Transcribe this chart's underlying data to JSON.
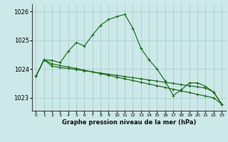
{
  "xlabel": "Graphe pression niveau de la mer (hPa)",
  "bg_color": "#cce8e8",
  "line_color": "#1a6b1a",
  "grid_color": "#aacece",
  "x_ticks": [
    0,
    1,
    2,
    3,
    4,
    5,
    6,
    7,
    8,
    9,
    10,
    11,
    12,
    13,
    14,
    15,
    16,
    17,
    18,
    19,
    20,
    21,
    22,
    23
  ],
  "ylim": [
    1022.55,
    1026.25
  ],
  "yticks": [
    1023,
    1024,
    1025,
    1026
  ],
  "series1_x": [
    0,
    1,
    2,
    3,
    4,
    5,
    6,
    7,
    8,
    9,
    10,
    11,
    12,
    13,
    14,
    15,
    16,
    17,
    18,
    19,
    20,
    21,
    22,
    23
  ],
  "series1_y": [
    1023.75,
    1024.32,
    1024.3,
    1024.22,
    1024.62,
    1024.92,
    1024.8,
    1025.18,
    1025.52,
    1025.72,
    1025.82,
    1025.9,
    1025.42,
    1024.72,
    1024.32,
    1024.0,
    1023.58,
    1023.08,
    1023.28,
    1023.52,
    1023.52,
    1023.4,
    1023.2,
    1022.78
  ],
  "series2_x": [
    0,
    1,
    2,
    3,
    4,
    5,
    6,
    7,
    8,
    9,
    10,
    11,
    12,
    13,
    14,
    15,
    16,
    17,
    18,
    19,
    20,
    21,
    22,
    23
  ],
  "series2_y": [
    1023.75,
    1024.32,
    1024.1,
    1024.05,
    1024.02,
    1023.98,
    1023.94,
    1023.9,
    1023.86,
    1023.82,
    1023.78,
    1023.74,
    1023.7,
    1023.66,
    1023.62,
    1023.58,
    1023.54,
    1023.5,
    1023.46,
    1023.42,
    1023.38,
    1023.34,
    1023.2,
    1022.78
  ],
  "series3_x": [
    0,
    1,
    2,
    3,
    4,
    5,
    6,
    7,
    8,
    9,
    10,
    11,
    12,
    13,
    14,
    15,
    16,
    17,
    18,
    19,
    20,
    21,
    22,
    23
  ],
  "series3_y": [
    1023.75,
    1024.32,
    1024.18,
    1024.12,
    1024.07,
    1024.02,
    1023.96,
    1023.9,
    1023.84,
    1023.78,
    1023.72,
    1023.66,
    1023.6,
    1023.54,
    1023.48,
    1023.42,
    1023.36,
    1023.3,
    1023.24,
    1023.18,
    1023.12,
    1023.06,
    1023.0,
    1022.78
  ]
}
